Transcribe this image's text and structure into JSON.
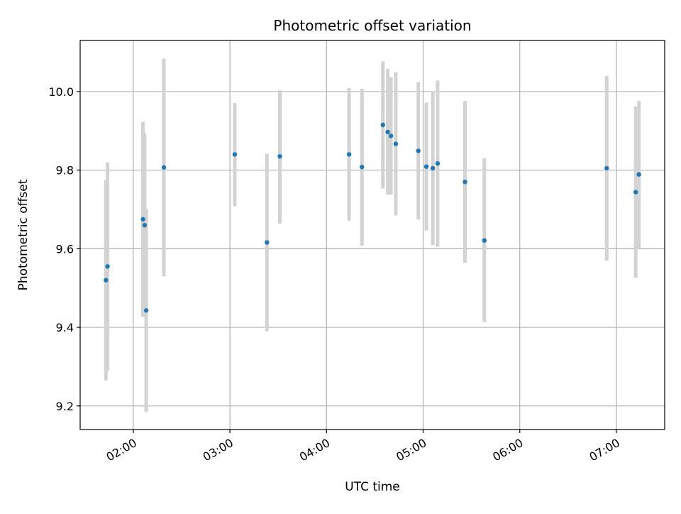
{
  "chart_data": {
    "type": "scatter",
    "title": "Photometric offset variation",
    "xlabel": "UTC time",
    "ylabel": "Photometric offset",
    "x_axis": {
      "kind": "time",
      "range": [
        "01:27",
        "07:30"
      ],
      "ticks": [
        "02:00",
        "03:00",
        "04:00",
        "05:00",
        "06:00",
        "07:00"
      ],
      "tick_label_rotation": "30 degrees"
    },
    "y_axis": {
      "range": [
        9.14,
        10.13
      ],
      "ticks": [
        9.2,
        9.4,
        9.6,
        9.8,
        10.0
      ],
      "tick_labels": [
        "9.2",
        "9.4",
        "9.6",
        "9.8",
        "10.0"
      ]
    },
    "grid": true,
    "legend": "none",
    "colors": {
      "points": "#1f77b4",
      "errorbars": "#d3d3d3",
      "grid": "#b0b0b0"
    },
    "series": [
      {
        "points": [
          {
            "x": "01:43",
            "y": 9.52,
            "ymin": 9.265,
            "ymax": 9.775
          },
          {
            "x": "01:44",
            "y": 9.555,
            "ymin": 9.29,
            "ymax": 9.82
          },
          {
            "x": "02:06",
            "y": 9.675,
            "ymin": 9.427,
            "ymax": 9.923
          },
          {
            "x": "02:07",
            "y": 9.66,
            "ymin": 9.427,
            "ymax": 9.893
          },
          {
            "x": "02:08",
            "y": 9.443,
            "ymin": 9.185,
            "ymax": 9.701
          },
          {
            "x": "02:19",
            "y": 9.807,
            "ymin": 9.53,
            "ymax": 10.084
          },
          {
            "x": "03:03",
            "y": 9.84,
            "ymin": 9.708,
            "ymax": 9.971
          },
          {
            "x": "03:23",
            "y": 9.616,
            "ymin": 9.39,
            "ymax": 9.842
          },
          {
            "x": "03:31",
            "y": 9.835,
            "ymin": 9.664,
            "ymax": 10.003
          },
          {
            "x": "04:14",
            "y": 9.84,
            "ymin": 9.671,
            "ymax": 10.009
          },
          {
            "x": "04:22",
            "y": 9.808,
            "ymin": 9.608,
            "ymax": 10.007
          },
          {
            "x": "04:35",
            "y": 9.915,
            "ymin": 9.753,
            "ymax": 10.077
          },
          {
            "x": "04:38",
            "y": 9.897,
            "ymin": 9.737,
            "ymax": 10.058
          },
          {
            "x": "04:40",
            "y": 9.887,
            "ymin": 9.738,
            "ymax": 10.036
          },
          {
            "x": "04:43",
            "y": 9.867,
            "ymin": 9.685,
            "ymax": 10.049
          },
          {
            "x": "04:57",
            "y": 9.849,
            "ymin": 9.674,
            "ymax": 10.024
          },
          {
            "x": "05:02",
            "y": 9.809,
            "ymin": 9.646,
            "ymax": 9.972
          },
          {
            "x": "05:06",
            "y": 9.805,
            "ymin": 9.609,
            "ymax": 10.001
          },
          {
            "x": "05:09",
            "y": 9.817,
            "ymin": 9.605,
            "ymax": 10.028
          },
          {
            "x": "05:26",
            "y": 9.77,
            "ymin": 9.564,
            "ymax": 9.976
          },
          {
            "x": "05:38",
            "y": 9.621,
            "ymin": 9.413,
            "ymax": 9.83
          },
          {
            "x": "06:54",
            "y": 9.805,
            "ymin": 9.57,
            "ymax": 10.04
          },
          {
            "x": "07:12",
            "y": 9.744,
            "ymin": 9.526,
            "ymax": 9.962
          },
          {
            "x": "07:14",
            "y": 9.789,
            "ymin": 9.602,
            "ymax": 9.976
          }
        ]
      }
    ]
  }
}
